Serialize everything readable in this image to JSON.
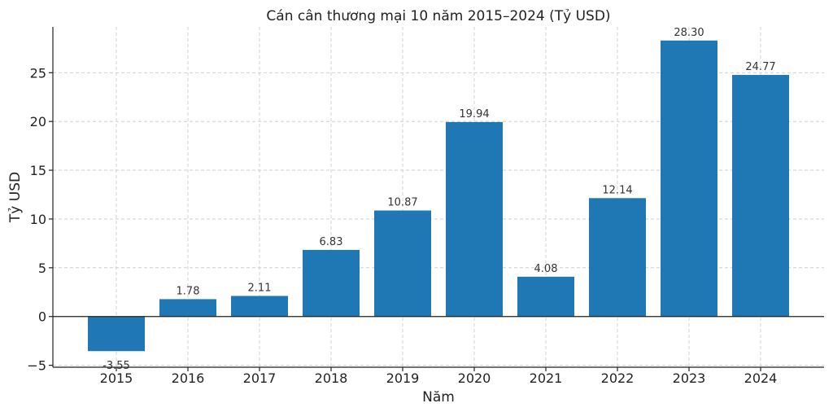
{
  "chart_data": {
    "type": "bar",
    "title": "Cán cân thương mại 10 năm 2015–2024 (Tỷ USD)",
    "xlabel": "Năm",
    "ylabel": "Tỷ USD",
    "categories": [
      "2015",
      "2016",
      "2017",
      "2018",
      "2019",
      "2020",
      "2021",
      "2022",
      "2023",
      "2024"
    ],
    "values": [
      -3.55,
      1.78,
      2.11,
      6.83,
      10.87,
      19.94,
      4.08,
      12.14,
      28.3,
      24.77
    ],
    "value_labels": [
      "-3.55",
      "1.78",
      "2.11",
      "6.83",
      "10.87",
      "19.94",
      "4.08",
      "12.14",
      "28.30",
      "24.77"
    ],
    "ylim": [
      -5.2,
      29.7
    ],
    "yticks": [
      -5,
      0,
      5,
      10,
      15,
      20,
      25
    ],
    "ytick_labels": [
      "−5",
      "0",
      "5",
      "10",
      "15",
      "20",
      "25"
    ],
    "grid": true,
    "bar_color": "#1f77b4"
  }
}
